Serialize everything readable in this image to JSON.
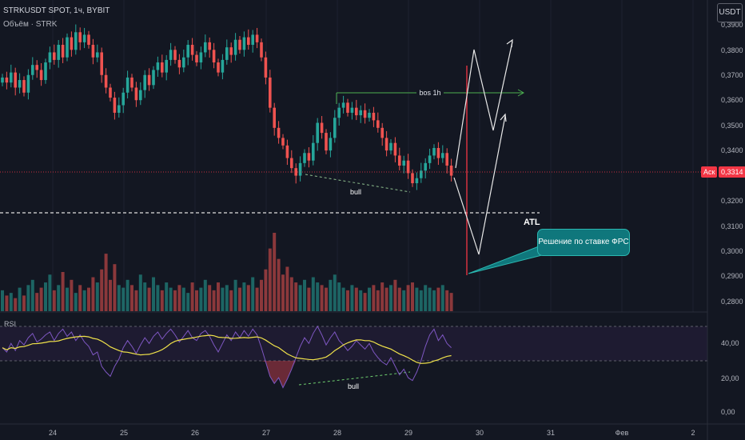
{
  "header": {
    "title": "STRKUSDT SPOT, 1ч, BYBIT",
    "volume_label": "Объём · STRK"
  },
  "toolbar": {
    "currency": "USDT"
  },
  "price_axis": {
    "ticks": [
      "0,3900",
      "0,3800",
      "0,3700",
      "0,3600",
      "0,3500",
      "0,3400",
      "0,3200",
      "0,3100",
      "0,3000",
      "0,2900",
      "0,2800"
    ],
    "ask_label": "Аск",
    "last_price": "0,3314"
  },
  "rsi_axis": {
    "label": "RSI",
    "ticks": [
      "40,00",
      "20,00",
      "0,00"
    ]
  },
  "time_axis": {
    "labels": [
      "24",
      "25",
      "26",
      "27",
      "28",
      "29",
      "30",
      "31",
      "Фев",
      "2"
    ]
  },
  "annotations": {
    "bos": "bos 1h",
    "bull_price": "bull",
    "bull_rsi": "bull",
    "atl": "ATL",
    "callout": "Решение по ставке ФРС"
  },
  "colors": {
    "up": "#26a69a",
    "down": "#ef5350",
    "background": "#131722",
    "rsi_line": "#7e57c2",
    "rsi_ma": "#f0e24a"
  },
  "chart_data": [
    {
      "type": "candlestick",
      "title": "STRKUSDT SPOT, 1ч, BYBIT",
      "x": [
        "24",
        "25",
        "26",
        "27",
        "28",
        "29",
        "30",
        "31",
        "Фев",
        "2"
      ],
      "ylim": [
        0.276,
        0.392
      ],
      "series": [
        {
          "close_path": [
            0.37,
            0.368,
            0.372,
            0.366,
            0.369,
            0.364,
            0.371,
            0.375,
            0.373,
            0.369,
            0.376,
            0.38,
            0.377,
            0.383,
            0.378,
            0.386,
            0.381,
            0.388,
            0.384,
            0.387,
            0.383,
            0.378,
            0.38,
            0.371,
            0.366,
            0.362,
            0.356,
            0.359,
            0.364,
            0.37,
            0.366,
            0.361,
            0.365,
            0.371,
            0.367,
            0.373,
            0.376,
            0.372,
            0.377,
            0.381,
            0.377,
            0.374,
            0.378,
            0.383,
            0.379,
            0.376,
            0.38,
            0.384,
            0.381,
            0.376,
            0.372,
            0.377,
            0.382,
            0.379,
            0.385,
            0.381,
            0.386,
            0.383,
            0.387,
            0.384,
            0.378,
            0.37,
            0.358,
            0.35,
            0.346,
            0.343,
            0.338,
            0.334,
            0.331,
            0.336,
            0.34,
            0.337,
            0.344,
            0.352,
            0.348,
            0.341,
            0.346,
            0.354,
            0.358,
            0.36,
            0.356,
            0.358,
            0.355,
            0.357,
            0.354,
            0.356,
            0.353,
            0.35,
            0.346,
            0.341,
            0.344,
            0.339,
            0.335,
            0.337,
            0.332,
            0.328,
            0.33,
            0.333,
            0.336,
            0.339,
            0.342,
            0.338,
            0.34,
            0.335,
            0.331
          ]
        }
      ]
    },
    {
      "type": "bar",
      "title": "Объём · STRK",
      "series": [
        {
          "values": [
            8,
            6,
            7,
            5,
            9,
            6,
            10,
            12,
            7,
            9,
            11,
            14,
            8,
            10,
            15,
            9,
            12,
            7,
            10,
            8,
            9,
            13,
            11,
            16,
            22,
            12,
            18,
            10,
            9,
            12,
            10,
            8,
            14,
            11,
            9,
            13,
            10,
            8,
            11,
            9,
            8,
            10,
            9,
            7,
            11,
            8,
            9,
            12,
            10,
            8,
            11,
            9,
            10,
            8,
            12,
            9,
            11,
            10,
            13,
            9,
            12,
            16,
            24,
            30,
            20,
            14,
            17,
            13,
            11,
            10,
            12,
            9,
            13,
            11,
            10,
            9,
            12,
            14,
            11,
            9,
            8,
            10,
            9,
            8,
            7,
            9,
            10,
            8,
            11,
            9,
            10,
            12,
            9,
            8,
            10,
            11,
            9,
            8,
            10,
            9,
            8,
            9,
            10,
            8,
            7
          ]
        }
      ]
    },
    {
      "type": "line",
      "title": "RSI",
      "ylim": [
        0,
        70
      ],
      "series": [
        {
          "name": "RSI",
          "values": [
            45,
            42,
            48,
            43,
            50,
            47,
            52,
            55,
            49,
            51,
            54,
            56,
            50,
            55,
            58,
            53,
            56,
            50,
            54,
            49,
            46,
            40,
            42,
            32,
            28,
            25,
            32,
            37,
            45,
            50,
            46,
            41,
            47,
            52,
            48,
            53,
            56,
            51,
            55,
            58,
            54,
            49,
            53,
            57,
            52,
            50,
            55,
            57,
            53,
            47,
            42,
            48,
            54,
            50,
            56,
            52,
            57,
            53,
            58,
            54,
            45,
            35,
            25,
            20,
            24,
            17,
            23,
            30,
            38,
            46,
            52,
            48,
            55,
            60,
            54,
            47,
            52,
            56,
            50,
            47,
            43,
            46,
            50,
            47,
            44,
            48,
            42,
            38,
            35,
            33,
            38,
            32,
            26,
            30,
            24,
            22,
            28,
            36,
            46,
            54,
            58,
            50,
            54,
            48,
            45
          ]
        }
      ]
    }
  ]
}
